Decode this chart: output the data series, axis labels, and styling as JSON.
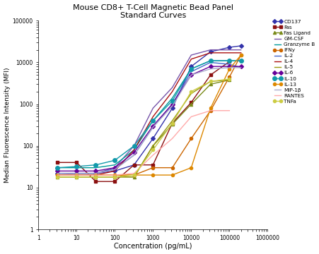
{
  "title": "Mouse CD8+ T-Cell Magnetic Bead Panel\nStandard Curves",
  "xlabel": "Concentration (pg/mL)",
  "ylabel": "Median Fluorescence Intensity (MFI)",
  "xlim": [
    1,
    1000000
  ],
  "ylim": [
    1,
    100000
  ],
  "series": [
    {
      "name": "CD137",
      "color": "#3333aa",
      "marker": "D",
      "markersize": 3,
      "x": [
        3.2,
        10,
        32,
        100,
        320,
        1000,
        3200,
        10000,
        32000,
        100000,
        200000
      ],
      "y": [
        22,
        22,
        22,
        25,
        35,
        150,
        800,
        8000,
        18000,
        23000,
        25000
      ]
    },
    {
      "name": "Fas",
      "color": "#8b1010",
      "marker": "s",
      "markersize": 3,
      "x": [
        3.2,
        10,
        32,
        100,
        320,
        1000,
        3200,
        10000,
        32000,
        100000
      ],
      "y": [
        40,
        40,
        14,
        14,
        35,
        35,
        350,
        1100,
        5000,
        10500
      ]
    },
    {
      "name": "Fas Ligand",
      "color": "#7a8b1a",
      "marker": "^",
      "markersize": 3,
      "x": [
        3.2,
        10,
        32,
        100,
        320,
        1000,
        3200,
        10000,
        32000,
        100000
      ],
      "y": [
        18,
        18,
        18,
        18,
        18,
        100,
        330,
        1000,
        3000,
        3800
      ]
    },
    {
      "name": "GM-CSF",
      "color": "#7755aa",
      "marker": "None",
      "markersize": 3,
      "x": [
        3.2,
        10,
        32,
        100,
        320,
        1000,
        3200,
        10000,
        32000,
        100000,
        200000
      ],
      "y": [
        20,
        22,
        22,
        30,
        100,
        800,
        2500,
        15000,
        20000,
        20000,
        20000
      ]
    },
    {
      "name": "Granzyme B",
      "color": "#009999",
      "marker": "None",
      "markersize": 3,
      "x": [
        3.2,
        10,
        32,
        100,
        320,
        1000,
        3200,
        10000,
        32000,
        100000,
        200000
      ],
      "y": [
        30,
        30,
        30,
        35,
        80,
        400,
        1400,
        7000,
        11000,
        11000,
        11000
      ]
    },
    {
      "name": "IFNy",
      "color": "#cc6600",
      "marker": "o",
      "markersize": 3,
      "x": [
        3.2,
        10,
        32,
        100,
        320,
        1000,
        3200,
        10000,
        32000,
        100000,
        200000
      ],
      "y": [
        20,
        20,
        20,
        20,
        20,
        30,
        30,
        150,
        700,
        4500,
        15000
      ]
    },
    {
      "name": "IL-2",
      "color": "#4466cc",
      "marker": "None",
      "markersize": 3,
      "x": [
        3.2,
        10,
        32,
        100,
        320,
        1000,
        3200,
        10000,
        32000,
        100000,
        200000
      ],
      "y": [
        22,
        22,
        22,
        28,
        60,
        280,
        1000,
        6000,
        10000,
        9000,
        7500
      ]
    },
    {
      "name": "IL-4",
      "color": "#aa1111",
      "marker": "None",
      "markersize": 3,
      "x": [
        3.2,
        10,
        32,
        100,
        320,
        1000,
        3200,
        10000,
        32000,
        100000,
        200000
      ],
      "y": [
        20,
        20,
        20,
        25,
        80,
        500,
        2000,
        12000,
        17000,
        17000,
        17000
      ]
    },
    {
      "name": "IL-5",
      "color": "#999911",
      "marker": "None",
      "markersize": 3,
      "x": [
        3.2,
        10,
        32,
        100,
        320,
        1000,
        3200,
        10000,
        32000,
        100000
      ],
      "y": [
        18,
        18,
        18,
        18,
        18,
        100,
        400,
        1800,
        3500,
        3800
      ]
    },
    {
      "name": "IL-6",
      "color": "#660099",
      "marker": "D",
      "markersize": 3,
      "x": [
        3.2,
        10,
        32,
        100,
        320,
        1000,
        3200,
        10000,
        32000,
        100000,
        200000
      ],
      "y": [
        25,
        25,
        25,
        30,
        70,
        300,
        1000,
        5000,
        8000,
        8000,
        8000
      ]
    },
    {
      "name": "IL-10",
      "color": "#1199aa",
      "marker": "o",
      "markersize": 4,
      "x": [
        3.2,
        10,
        32,
        100,
        320,
        1000,
        3200,
        10000,
        32000,
        100000,
        200000
      ],
      "y": [
        30,
        32,
        35,
        45,
        100,
        400,
        1200,
        7000,
        11000,
        11000,
        11000
      ]
    },
    {
      "name": "IL-13",
      "color": "#dd8800",
      "marker": "o",
      "markersize": 3,
      "x": [
        3.2,
        10,
        32,
        100,
        320,
        1000,
        3200,
        10000,
        32000,
        100000,
        200000
      ],
      "y": [
        20,
        20,
        20,
        20,
        20,
        20,
        20,
        30,
        800,
        7000,
        15000
      ]
    },
    {
      "name": "MIP-1β",
      "color": "#aaaacc",
      "marker": "None",
      "markersize": 3,
      "x": [
        3.2,
        10,
        32,
        100,
        320,
        1000,
        3200,
        10000,
        32000,
        100000,
        200000
      ],
      "y": [
        22,
        22,
        22,
        27,
        60,
        280,
        900,
        5000,
        7000,
        7500,
        7500
      ]
    },
    {
      "name": "RANTES",
      "color": "#ffaaaa",
      "marker": "None",
      "markersize": 3,
      "x": [
        3.2,
        10,
        32,
        100,
        320,
        1000,
        3200,
        10000,
        32000,
        100000
      ],
      "y": [
        20,
        20,
        20,
        20,
        22,
        60,
        150,
        500,
        700,
        700
      ]
    },
    {
      "name": "TNFa",
      "color": "#cccc44",
      "marker": "o",
      "markersize": 3,
      "x": [
        3.2,
        10,
        32,
        100,
        320,
        1000,
        3200,
        10000,
        32000,
        100000
      ],
      "y": [
        18,
        18,
        18,
        18,
        20,
        80,
        350,
        2000,
        3500,
        4000
      ]
    }
  ]
}
